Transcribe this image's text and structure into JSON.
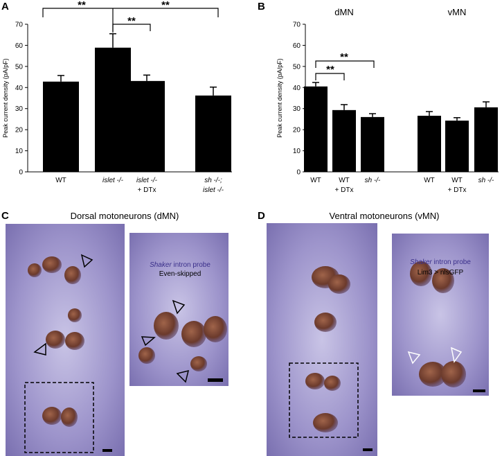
{
  "panel_labels": [
    "A",
    "B",
    "C",
    "D"
  ],
  "chart_data": [
    {
      "type": "bar",
      "ylabel": "Peak current density (pA/pF)",
      "categories": [
        [
          "WT"
        ],
        [
          "islet -/-"
        ],
        [
          "islet -/-",
          "+ DTx"
        ],
        [
          "sh -/-;",
          "islet -/-"
        ]
      ],
      "values": [
        42.8,
        58.9,
        43.1,
        36.2
      ],
      "errors": [
        2.9,
        6.6,
        2.8,
        4.0
      ],
      "color": "#000000",
      "ylim": [
        0,
        70
      ],
      "yticks": [
        0,
        10,
        20,
        30,
        40,
        50,
        60,
        70
      ],
      "annotations": [
        "**",
        "**",
        "**"
      ]
    },
    {
      "type": "bar",
      "ylabel": "Peak current density (pA/pF)",
      "groups": [
        "dMN",
        "vMN"
      ],
      "categories": [
        [
          "WT"
        ],
        [
          "WT",
          "+ DTx"
        ],
        [
          "sh -/-"
        ],
        [
          "WT"
        ],
        [
          "WT",
          "+ DTx"
        ],
        [
          "sh -/-"
        ]
      ],
      "values": [
        40.5,
        29.3,
        26.0,
        26.6,
        24.3,
        30.6
      ],
      "errors": [
        1.9,
        2.6,
        1.6,
        2.0,
        1.4,
        2.6
      ],
      "color": "#000000",
      "ylim": [
        0,
        70
      ],
      "yticks": [
        0,
        10,
        20,
        30,
        40,
        50,
        60,
        70
      ],
      "annotations": [
        "**",
        "**"
      ]
    }
  ],
  "images": [
    {
      "title": "Dorsal motoneurons (dMN)",
      "probe_gene": "Shaker",
      "probe_rest": "intron probe",
      "marker": "Even-skipped"
    },
    {
      "title": "Ventral motoneurons (vMN)",
      "probe_gene": "Shaker",
      "probe_rest": "intron probe",
      "marker": "Lim3 > nlsGFP"
    }
  ]
}
